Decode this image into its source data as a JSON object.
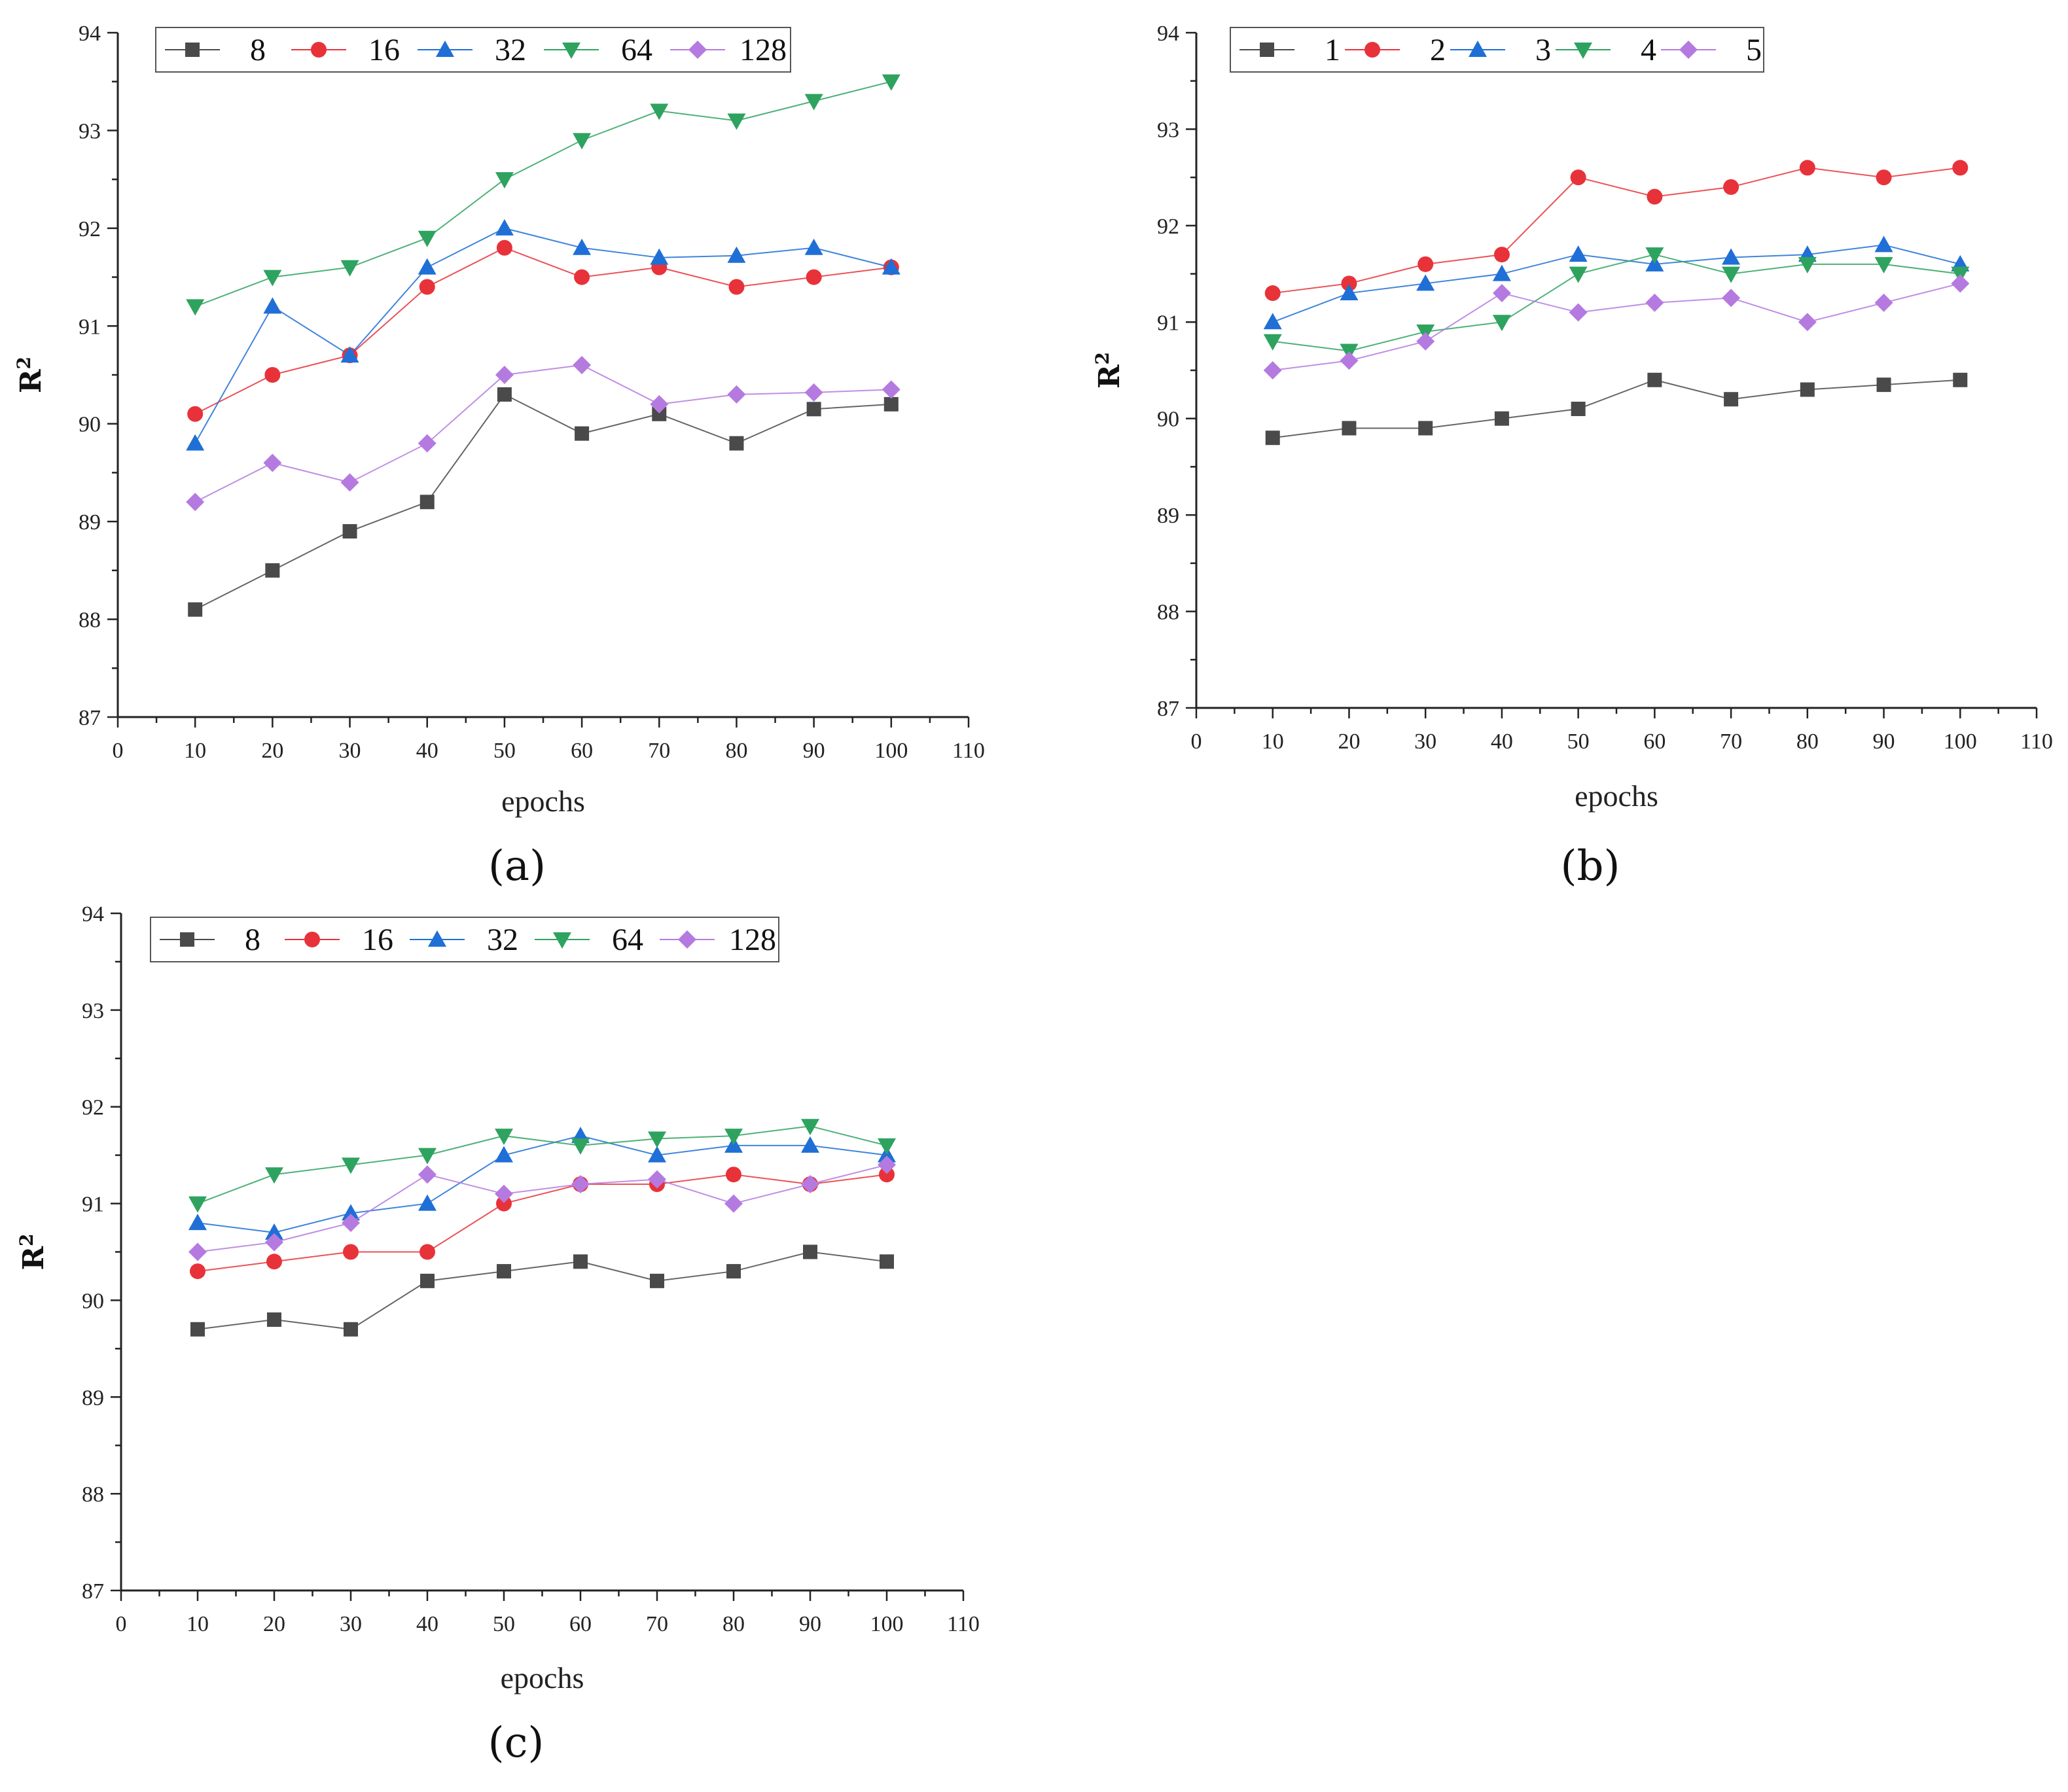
{
  "chart_data": [
    {
      "type": "line",
      "panel_label": "(a)",
      "legend_labels": [
        "8",
        "16",
        "32",
        "64",
        "128"
      ],
      "xlabel": "epochs",
      "ylabel": "R",
      "ylabel_sup": "2",
      "xlim": [
        0,
        110
      ],
      "ylim": [
        87,
        94
      ],
      "x_ticks": [
        "0",
        "10",
        "20",
        "30",
        "40",
        "50",
        "60",
        "70",
        "80",
        "90",
        "100",
        "110"
      ],
      "y_ticks": [
        "87",
        "88",
        "89",
        "90",
        "91",
        "92",
        "93",
        "94"
      ],
      "x": [
        10,
        20,
        30,
        40,
        50,
        60,
        70,
        80,
        90,
        100
      ],
      "series": [
        {
          "name": "8",
          "color": "#4a4a4a",
          "marker": "square",
          "values": [
            88.1,
            88.5,
            88.9,
            89.2,
            90.3,
            89.9,
            90.1,
            89.8,
            90.15,
            90.2
          ]
        },
        {
          "name": "16",
          "color": "#e8323a",
          "marker": "circle",
          "values": [
            90.1,
            90.5,
            90.7,
            91.4,
            91.8,
            91.5,
            91.6,
            91.4,
            91.5,
            91.6
          ]
        },
        {
          "name": "32",
          "color": "#1f6fd6",
          "marker": "triangle-up",
          "values": [
            89.8,
            91.2,
            90.7,
            91.6,
            92.0,
            91.8,
            91.7,
            91.72,
            91.8,
            91.6
          ]
        },
        {
          "name": "64",
          "color": "#2ea35f",
          "marker": "triangle-down",
          "values": [
            91.2,
            91.5,
            91.6,
            91.9,
            92.5,
            92.9,
            93.2,
            93.1,
            93.3,
            93.5
          ]
        },
        {
          "name": "128",
          "color": "#b57ae0",
          "marker": "diamond",
          "values": [
            89.2,
            89.6,
            89.4,
            89.8,
            90.5,
            90.6,
            90.2,
            90.3,
            90.32,
            90.35
          ]
        }
      ]
    },
    {
      "type": "line",
      "panel_label": "(b)",
      "legend_labels": [
        "1",
        "2",
        "3",
        "4",
        "5"
      ],
      "xlabel": "epochs",
      "ylabel": "R",
      "ylabel_sup": "2",
      "xlim": [
        0,
        110
      ],
      "ylim": [
        87,
        94
      ],
      "x_ticks": [
        "0",
        "10",
        "20",
        "30",
        "40",
        "50",
        "60",
        "70",
        "80",
        "90",
        "100",
        "110"
      ],
      "y_ticks": [
        "87",
        "88",
        "89",
        "90",
        "91",
        "92",
        "93",
        "94"
      ],
      "x": [
        10,
        20,
        30,
        40,
        50,
        60,
        70,
        80,
        90,
        100
      ],
      "series": [
        {
          "name": "1",
          "color": "#4a4a4a",
          "marker": "square",
          "values": [
            89.8,
            89.9,
            89.9,
            90.0,
            90.1,
            90.4,
            90.2,
            90.3,
            90.35,
            90.4
          ]
        },
        {
          "name": "2",
          "color": "#e8323a",
          "marker": "circle",
          "values": [
            91.3,
            91.4,
            91.6,
            91.7,
            92.5,
            92.3,
            92.4,
            92.6,
            92.5,
            92.6
          ]
        },
        {
          "name": "3",
          "color": "#1f6fd6",
          "marker": "triangle-up",
          "values": [
            91.0,
            91.3,
            91.4,
            91.5,
            91.7,
            91.6,
            91.67,
            91.7,
            91.8,
            91.6
          ]
        },
        {
          "name": "4",
          "color": "#2ea35f",
          "marker": "triangle-down",
          "values": [
            90.8,
            90.7,
            90.9,
            91.0,
            91.5,
            91.7,
            91.5,
            91.6,
            91.6,
            91.5
          ]
        },
        {
          "name": "5",
          "color": "#b57ae0",
          "marker": "diamond",
          "values": [
            90.5,
            90.6,
            90.8,
            91.3,
            91.1,
            91.2,
            91.25,
            91.0,
            91.2,
            91.4
          ]
        }
      ]
    },
    {
      "type": "line",
      "panel_label": "(c)",
      "legend_labels": [
        "8",
        "16",
        "32",
        "64",
        "128"
      ],
      "xlabel": "epochs",
      "ylabel": "R",
      "ylabel_sup": "2",
      "xlim": [
        0,
        110
      ],
      "ylim": [
        87,
        94
      ],
      "x_ticks": [
        "0",
        "10",
        "20",
        "30",
        "40",
        "50",
        "60",
        "70",
        "80",
        "90",
        "100",
        "110"
      ],
      "y_ticks": [
        "87",
        "88",
        "89",
        "90",
        "91",
        "92",
        "93",
        "94"
      ],
      "x": [
        10,
        20,
        30,
        40,
        50,
        60,
        70,
        80,
        90,
        100
      ],
      "series": [
        {
          "name": "8",
          "color": "#4a4a4a",
          "marker": "square",
          "values": [
            89.7,
            89.8,
            89.7,
            90.2,
            90.3,
            90.4,
            90.2,
            90.3,
            90.5,
            90.4
          ]
        },
        {
          "name": "16",
          "color": "#e8323a",
          "marker": "circle",
          "values": [
            90.3,
            90.4,
            90.5,
            90.5,
            91.0,
            91.2,
            91.2,
            91.3,
            91.2,
            91.3
          ]
        },
        {
          "name": "32",
          "color": "#1f6fd6",
          "marker": "triangle-up",
          "values": [
            90.8,
            90.7,
            90.9,
            91.0,
            91.5,
            91.7,
            91.5,
            91.6,
            91.6,
            91.5
          ]
        },
        {
          "name": "64",
          "color": "#2ea35f",
          "marker": "triangle-down",
          "values": [
            91.0,
            91.3,
            91.4,
            91.5,
            91.7,
            91.6,
            91.67,
            91.7,
            91.8,
            91.6
          ]
        },
        {
          "name": "128",
          "color": "#b57ae0",
          "marker": "diamond",
          "values": [
            90.5,
            90.6,
            90.8,
            91.3,
            91.1,
            91.2,
            91.25,
            91.0,
            91.2,
            91.4
          ]
        }
      ]
    }
  ]
}
